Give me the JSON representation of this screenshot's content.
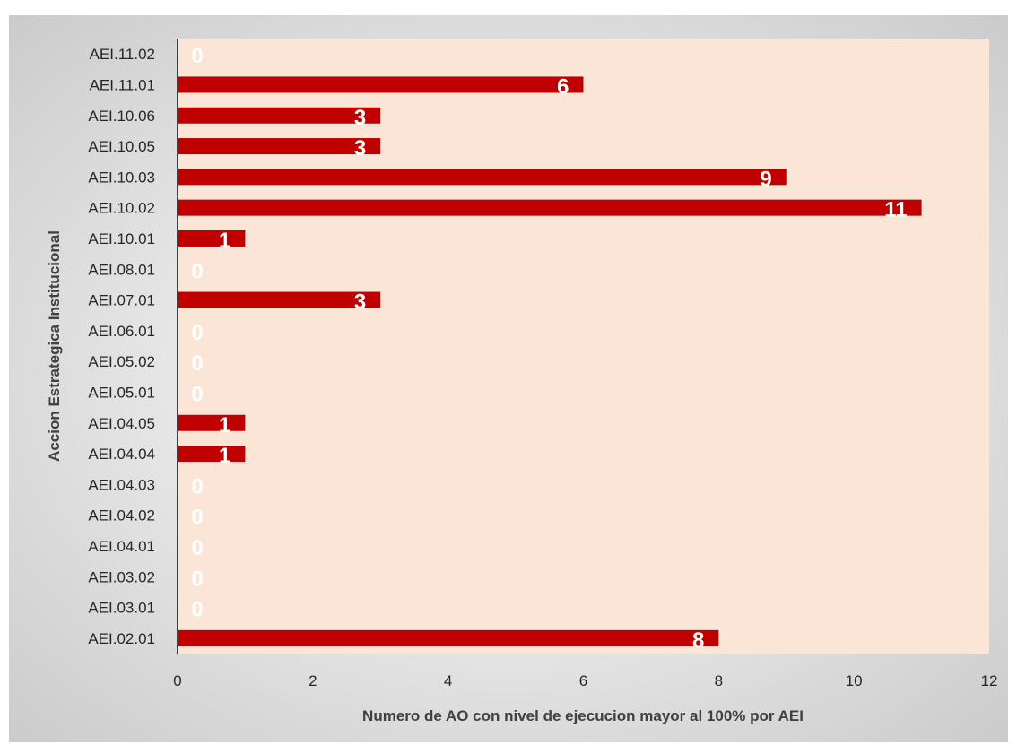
{
  "chart_data": {
    "type": "bar",
    "orientation": "horizontal",
    "categories": [
      "AEI.02.01",
      "AEI.03.01",
      "AEI.03.02",
      "AEI.04.01",
      "AEI.04.02",
      "AEI.04.03",
      "AEI.04.04",
      "AEI.04.05",
      "AEI.05.01",
      "AEI.05.02",
      "AEI.06.01",
      "AEI.07.01",
      "AEI.08.01",
      "AEI.10.01",
      "AEI.10.02",
      "AEI.10.03",
      "AEI.10.05",
      "AEI.10.06",
      "AEI.11.01",
      "AEI.11.02"
    ],
    "values": [
      8,
      0,
      0,
      0,
      0,
      0,
      1,
      1,
      0,
      0,
      0,
      3,
      0,
      1,
      11,
      9,
      3,
      3,
      6,
      0
    ],
    "xlabel": "Numero de AO con nivel de ejecucion mayor al 100% por AEI",
    "ylabel": "Accion Estrategica Institucional",
    "xlim": [
      0,
      12
    ],
    "xticks": [
      0,
      2,
      4,
      6,
      8,
      10,
      12
    ],
    "grid": false,
    "legend": "none",
    "data_labels": true,
    "colors": {
      "bar": "#c00000",
      "plot_background": "#fbe5d6",
      "data_label": "#ffffff",
      "axis_line": "#404040",
      "text": "#262626",
      "frame_center": "#ffffff",
      "frame_edge": "#c8c8c8"
    }
  }
}
